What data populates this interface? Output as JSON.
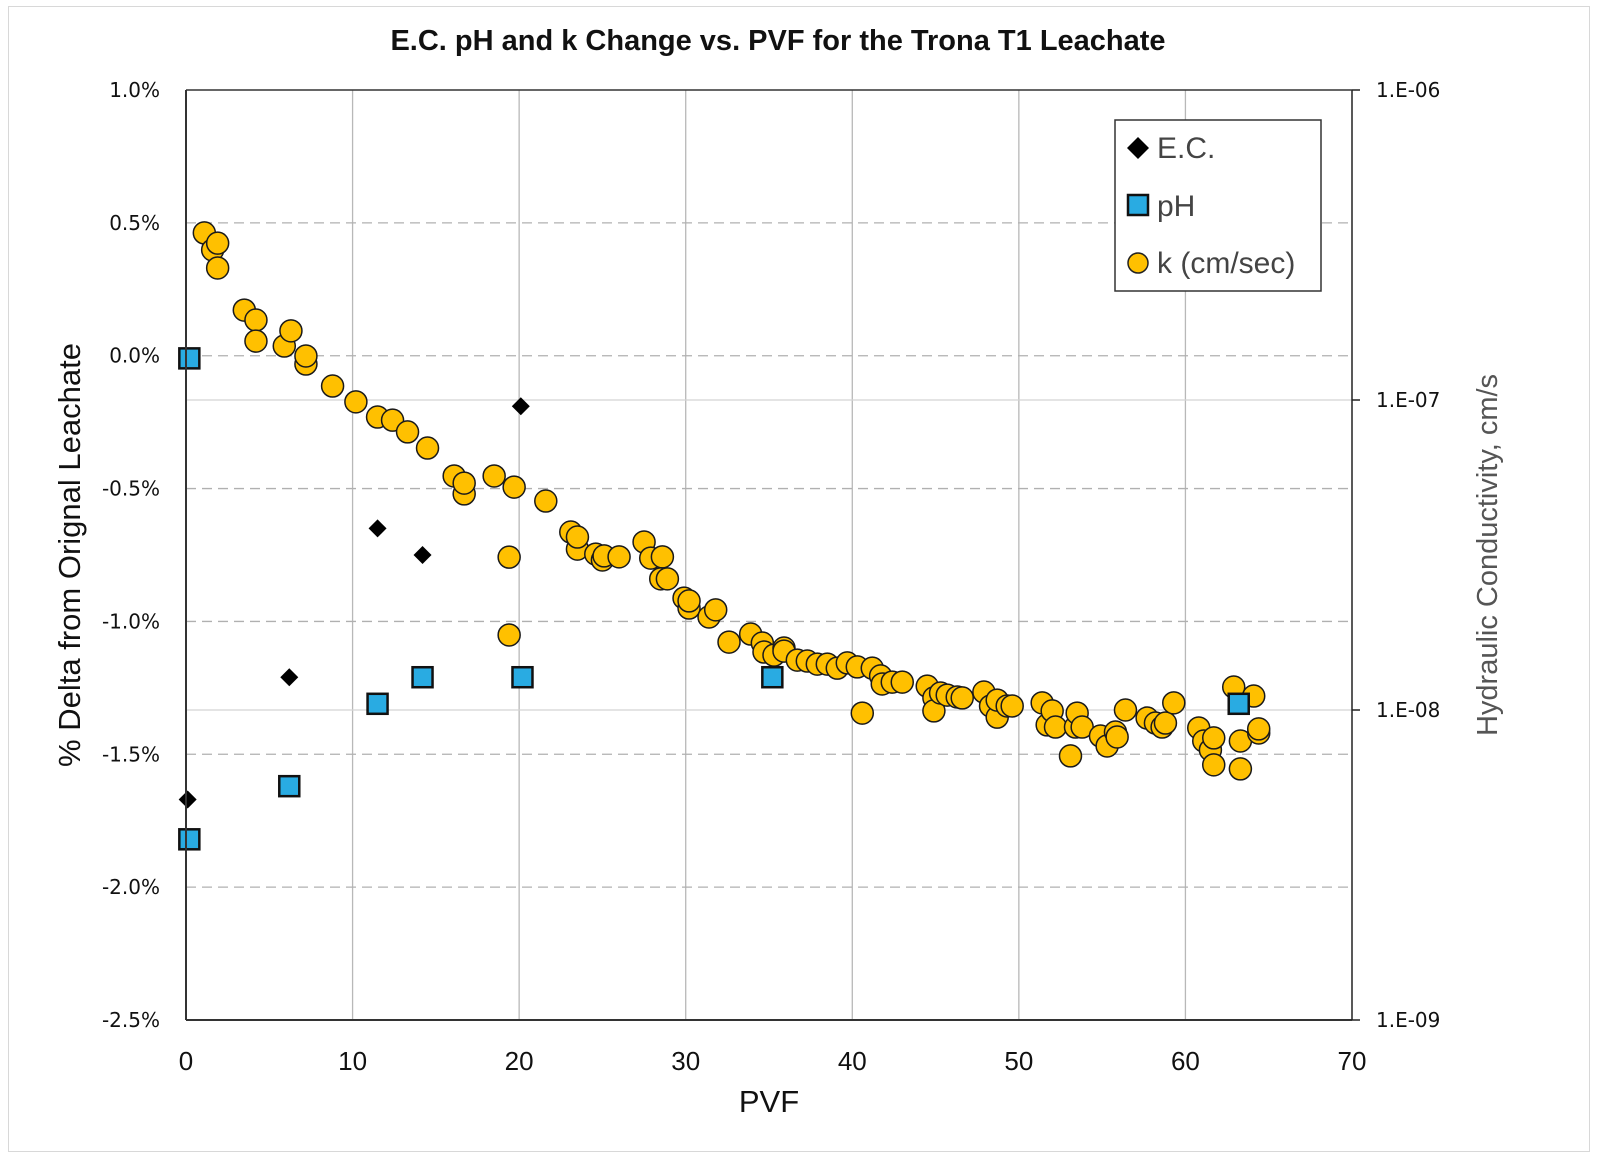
{
  "chart_data": {
    "type": "scatter",
    "title": "E.C. pH and k Change vs. PVF for the Trona T1 Leachate",
    "xlabel": "PVF",
    "ylabel": "% Delta from Orignal Leachate",
    "y2label": "Hydraulic Conductivity, cm/s",
    "xlim": [
      0,
      70
    ],
    "ylim": [
      -2.5,
      1.0
    ],
    "y2lim_log10": [
      -9,
      -6
    ],
    "x_ticks": [
      0,
      10,
      20,
      30,
      40,
      50,
      60,
      70
    ],
    "x_tick_labels": [
      "0",
      "10",
      "20",
      "30",
      "40",
      "50",
      "60",
      "70"
    ],
    "y_ticks": [
      1.0,
      0.5,
      0.0,
      -0.5,
      -1.0,
      -1.5,
      -2.0,
      -2.5
    ],
    "y_tick_labels": [
      "1.0%",
      "0.5%",
      "0.0%",
      "-0.5%",
      "-1.0%",
      "-1.5%",
      "-2.0%",
      "-2.5%"
    ],
    "y2_ticks_log10": [
      -6,
      -7,
      -8,
      -9
    ],
    "y2_tick_labels": [
      "1.E-06",
      "1.E-07",
      "1.E-08",
      "1.E-09"
    ],
    "grid": true,
    "legend_position": "top-right",
    "series": [
      {
        "name": "E.C.",
        "axis": "left",
        "marker": "diamond",
        "color": "#000000",
        "points": [
          [
            0.1,
            -1.67
          ],
          [
            6.2,
            -1.21
          ],
          [
            11.5,
            -0.65
          ],
          [
            14.2,
            -0.75
          ],
          [
            20.1,
            -0.19
          ]
        ]
      },
      {
        "name": "pH",
        "axis": "left",
        "marker": "square",
        "color": "#29abe2",
        "points": [
          [
            0.2,
            -0.01
          ],
          [
            0.2,
            -1.82
          ],
          [
            6.2,
            -1.62
          ],
          [
            11.5,
            -1.31
          ],
          [
            14.2,
            -1.21
          ],
          [
            20.2,
            -1.21
          ],
          [
            35.2,
            -1.21
          ],
          [
            63.2,
            -1.31
          ]
        ]
      },
      {
        "name": "k (cm/sec)",
        "axis": "right",
        "marker": "circle",
        "color": "#ffc000",
        "value_format": "log10(cm/s)",
        "points": [
          [
            1.1,
            -6.461
          ],
          [
            1.6,
            -6.516
          ],
          [
            1.9,
            -6.494
          ],
          [
            1.9,
            -6.574
          ],
          [
            3.5,
            -6.71
          ],
          [
            4.2,
            -6.742
          ],
          [
            4.2,
            -6.81
          ],
          [
            5.9,
            -6.826
          ],
          [
            6.3,
            -6.777
          ],
          [
            7.2,
            -6.884
          ],
          [
            7.2,
            -6.858
          ],
          [
            8.8,
            -6.955
          ],
          [
            10.2,
            -7.006
          ],
          [
            11.5,
            -7.055
          ],
          [
            12.4,
            -7.065
          ],
          [
            13.3,
            -7.103
          ],
          [
            14.5,
            -7.155
          ],
          [
            16.1,
            -7.245
          ],
          [
            16.7,
            -7.303
          ],
          [
            16.7,
            -7.268
          ],
          [
            18.5,
            -7.245
          ],
          [
            19.7,
            -7.281
          ],
          [
            21.6,
            -7.326
          ],
          [
            19.4,
            -7.507
          ],
          [
            19.4,
            -7.758
          ],
          [
            23.1,
            -7.426
          ],
          [
            23.5,
            -7.481
          ],
          [
            23.5,
            -7.442
          ],
          [
            24.6,
            -7.497
          ],
          [
            25.0,
            -7.516
          ],
          [
            25.1,
            -7.503
          ],
          [
            26.0,
            -7.506
          ],
          [
            27.5,
            -7.458
          ],
          [
            27.9,
            -7.51
          ],
          [
            28.6,
            -7.506
          ],
          [
            28.5,
            -7.577
          ],
          [
            28.9,
            -7.577
          ],
          [
            29.9,
            -7.639
          ],
          [
            30.2,
            -7.671
          ],
          [
            30.2,
            -7.648
          ],
          [
            31.4,
            -7.7
          ],
          [
            31.8,
            -7.677
          ],
          [
            32.6,
            -7.781
          ],
          [
            33.9,
            -7.755
          ],
          [
            34.6,
            -7.784
          ],
          [
            34.7,
            -7.813
          ],
          [
            35.3,
            -7.823
          ],
          [
            35.9,
            -7.8
          ],
          [
            35.9,
            -7.81
          ],
          [
            36.7,
            -7.839
          ],
          [
            37.3,
            -7.842
          ],
          [
            37.9,
            -7.852
          ],
          [
            38.5,
            -7.852
          ],
          [
            39.1,
            -7.865
          ],
          [
            39.7,
            -7.848
          ],
          [
            40.3,
            -7.861
          ],
          [
            40.6,
            -8.01
          ],
          [
            41.2,
            -7.865
          ],
          [
            41.7,
            -7.89
          ],
          [
            41.8,
            -7.916
          ],
          [
            42.4,
            -7.91
          ],
          [
            43.0,
            -7.91
          ],
          [
            44.5,
            -7.923
          ],
          [
            44.9,
            -7.961
          ],
          [
            44.9,
            -8.003
          ],
          [
            45.3,
            -7.945
          ],
          [
            45.7,
            -7.952
          ],
          [
            46.3,
            -7.958
          ],
          [
            46.6,
            -7.961
          ],
          [
            47.9,
            -7.942
          ],
          [
            48.3,
            -7.987
          ],
          [
            48.7,
            -8.023
          ],
          [
            48.7,
            -7.968
          ],
          [
            49.3,
            -7.987
          ],
          [
            49.6,
            -7.987
          ],
          [
            51.4,
            -7.977
          ],
          [
            51.7,
            -8.048
          ],
          [
            52.0,
            -8.003
          ],
          [
            52.2,
            -8.055
          ],
          [
            53.1,
            -8.148
          ],
          [
            53.4,
            -8.055
          ],
          [
            53.5,
            -8.01
          ],
          [
            53.8,
            -8.055
          ],
          [
            54.9,
            -8.084
          ],
          [
            55.3,
            -8.116
          ],
          [
            55.8,
            -8.071
          ],
          [
            55.9,
            -8.087
          ],
          [
            56.4,
            -8.0
          ],
          [
            57.7,
            -8.026
          ],
          [
            58.2,
            -8.042
          ],
          [
            58.6,
            -8.055
          ],
          [
            58.8,
            -8.042
          ],
          [
            59.3,
            -7.977
          ],
          [
            60.8,
            -8.058
          ],
          [
            61.1,
            -8.1
          ],
          [
            61.5,
            -8.129
          ],
          [
            61.7,
            -8.09
          ],
          [
            61.7,
            -8.177
          ],
          [
            62.9,
            -7.926
          ],
          [
            63.3,
            -8.1
          ],
          [
            63.3,
            -8.19
          ],
          [
            64.1,
            -7.955
          ],
          [
            64.4,
            -8.074
          ],
          [
            64.4,
            -8.061
          ]
        ]
      }
    ]
  },
  "legend": {
    "items": [
      {
        "label": "E.C.",
        "marker": "diamond"
      },
      {
        "label": "pH",
        "marker": "square"
      },
      {
        "label": "k (cm/sec)",
        "marker": "circle"
      }
    ]
  }
}
